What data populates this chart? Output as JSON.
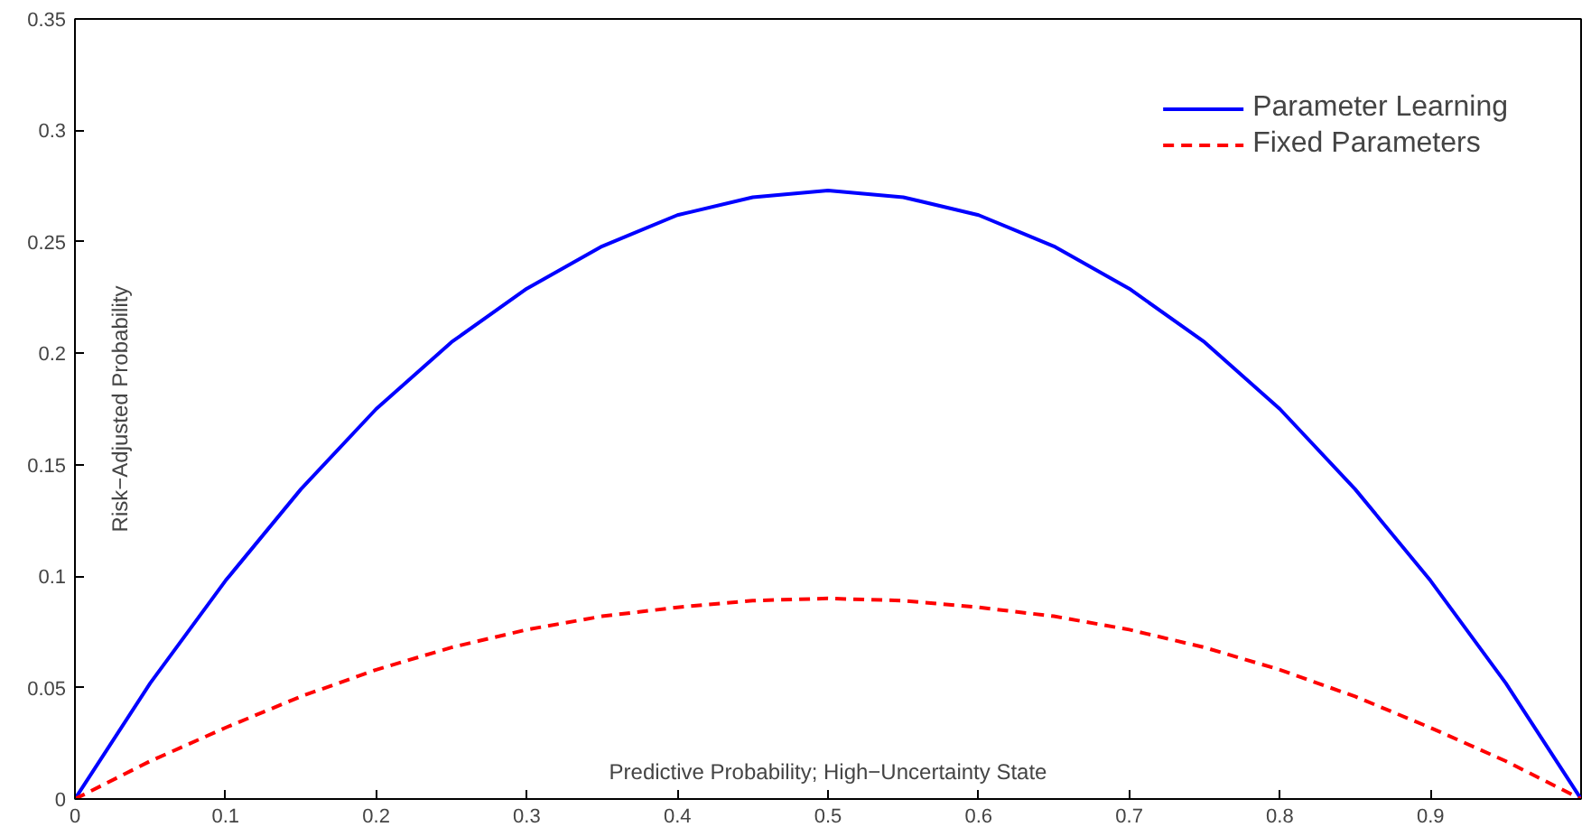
{
  "chart_data": {
    "type": "line",
    "xlabel": "Predictive Probability; High−Uncertainty State",
    "ylabel": "Risk−Adjusted Probability",
    "x": [
      0,
      0.05,
      0.1,
      0.15,
      0.2,
      0.25,
      0.3,
      0.35,
      0.4,
      0.45,
      0.5,
      0.55,
      0.6,
      0.65,
      0.7,
      0.75,
      0.8,
      0.85,
      0.9,
      0.95,
      1
    ],
    "series": [
      {
        "name": "Parameter Learning",
        "color": "#0000ff",
        "line_style": "solid",
        "values": [
          0,
          0.052,
          0.098,
          0.139,
          0.175,
          0.205,
          0.229,
          0.248,
          0.262,
          0.27,
          0.273,
          0.27,
          0.262,
          0.248,
          0.229,
          0.205,
          0.175,
          0.139,
          0.098,
          0.052,
          0
        ]
      },
      {
        "name": "Fixed Parameters",
        "color": "#ff0000",
        "line_style": "dashed",
        "values": [
          0,
          0.017,
          0.032,
          0.046,
          0.058,
          0.068,
          0.076,
          0.082,
          0.086,
          0.089,
          0.09,
          0.089,
          0.086,
          0.082,
          0.076,
          0.068,
          0.058,
          0.046,
          0.032,
          0.017,
          0
        ]
      }
    ],
    "xlim": [
      0,
      1
    ],
    "ylim": [
      0,
      0.35
    ],
    "xticks": [
      0,
      0.1,
      0.2,
      0.3,
      0.4,
      0.5,
      0.6,
      0.7,
      0.8,
      0.9
    ],
    "yticks": [
      0,
      0.05,
      0.1,
      0.15,
      0.2,
      0.25,
      0.3,
      0.35
    ],
    "grid": false,
    "legend": "top right"
  }
}
